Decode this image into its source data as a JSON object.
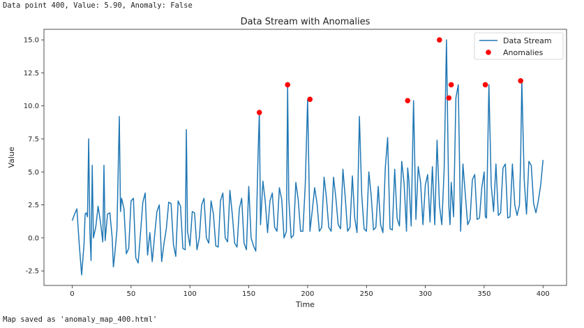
{
  "output": {
    "status_line": "Data point 400, Value: 5.90, Anomaly: False",
    "saved_line": "Map saved as 'anomaly_map_400.html'"
  },
  "colors": {
    "stream": "#1f77b4",
    "anomaly": "#ff0000"
  },
  "chart_data": {
    "type": "line",
    "title": "Data Stream with Anomalies",
    "xlabel": "Time",
    "ylabel": "Value",
    "xlim": [
      -24,
      420
    ],
    "ylim": [
      -3.6,
      15.8
    ],
    "xticks": [
      0,
      50,
      100,
      150,
      200,
      250,
      300,
      350,
      400
    ],
    "yticks": [
      -2.5,
      0.0,
      2.5,
      5.0,
      7.5,
      10.0,
      12.5,
      15.0
    ],
    "ytick_labels": [
      "-2.5",
      "0.0",
      "2.5",
      "5.0",
      "7.5",
      "10.0",
      "12.5",
      "15.0"
    ],
    "legend": {
      "position": "top-right",
      "entries": [
        "Data Stream",
        "Anomalies"
      ]
    },
    "series": [
      {
        "name": "Data Stream",
        "style": "line",
        "x": [
          0,
          2,
          4,
          6,
          8,
          10,
          11,
          12,
          13,
          14,
          15,
          16,
          17,
          18,
          20,
          22,
          24,
          26,
          27,
          28,
          30,
          32,
          34,
          35,
          36,
          38,
          40,
          41,
          42,
          44,
          46,
          48,
          50,
          52,
          54,
          56,
          58,
          60,
          62,
          64,
          66,
          68,
          70,
          72,
          74,
          76,
          78,
          80,
          82,
          84,
          86,
          88,
          90,
          92,
          94,
          96,
          97,
          98,
          100,
          102,
          104,
          106,
          108,
          110,
          112,
          114,
          116,
          118,
          120,
          122,
          124,
          126,
          128,
          130,
          132,
          134,
          136,
          138,
          140,
          142,
          144,
          146,
          148,
          150,
          152,
          154,
          156,
          158,
          159,
          160,
          162,
          164,
          166,
          168,
          170,
          172,
          174,
          176,
          178,
          180,
          182,
          183,
          184,
          186,
          188,
          190,
          192,
          194,
          196,
          198,
          200,
          202,
          204,
          206,
          208,
          210,
          212,
          214,
          216,
          218,
          220,
          222,
          224,
          226,
          228,
          230,
          232,
          234,
          236,
          238,
          240,
          242,
          244,
          246,
          248,
          250,
          252,
          254,
          256,
          258,
          260,
          262,
          264,
          266,
          268,
          270,
          272,
          274,
          276,
          278,
          280,
          282,
          284,
          285,
          286,
          288,
          290,
          292,
          294,
          296,
          298,
          300,
          302,
          304,
          306,
          308,
          310,
          312,
          314,
          316,
          318,
          320,
          321,
          322,
          324,
          326,
          328,
          330,
          332,
          334,
          336,
          338,
          340,
          342,
          344,
          346,
          348,
          350,
          351,
          352,
          354,
          356,
          358,
          360,
          362,
          364,
          366,
          368,
          370,
          372,
          374,
          376,
          378,
          380,
          381,
          382,
          384,
          386,
          388,
          390,
          392,
          394,
          396,
          398,
          400
        ],
        "y": [
          1.3,
          1.8,
          2.2,
          -0.5,
          -2.8,
          -0.5,
          1.8,
          1.9,
          1.6,
          7.5,
          0.5,
          -1.7,
          5.5,
          0.0,
          0.8,
          2.4,
          1.2,
          -0.3,
          5.5,
          -0.2,
          1.8,
          1.9,
          0.0,
          -2.2,
          -1.4,
          0.6,
          9.2,
          2.0,
          3.0,
          2.2,
          -1.2,
          -0.8,
          2.8,
          3.0,
          -1.5,
          -1.9,
          0.3,
          2.7,
          3.4,
          -1.3,
          0.4,
          -1.8,
          0.2,
          2.0,
          2.5,
          -1.8,
          -0.4,
          0.7,
          2.7,
          2.6,
          -0.5,
          -1.4,
          2.8,
          2.4,
          -0.8,
          -0.9,
          8.2,
          0.5,
          -0.6,
          2.0,
          1.9,
          -0.9,
          0.0,
          2.5,
          3.0,
          0.0,
          -0.4,
          2.8,
          1.8,
          -0.6,
          -0.7,
          2.8,
          3.4,
          0.0,
          -0.3,
          3.6,
          1.8,
          -0.4,
          -0.7,
          2.2,
          3.0,
          -0.4,
          -0.9,
          3.9,
          0.0,
          -0.6,
          -1.0,
          6.6,
          9.5,
          1.0,
          4.3,
          2.8,
          0.4,
          2.8,
          3.4,
          0.8,
          0.5,
          3.8,
          2.9,
          0.0,
          0.5,
          11.6,
          3.0,
          0.0,
          0.2,
          4.2,
          2.9,
          0.5,
          0.5,
          4.0,
          10.5,
          0.5,
          2.1,
          3.8,
          2.6,
          0.5,
          0.8,
          4.6,
          3.0,
          0.8,
          0.5,
          4.6,
          3.0,
          1.0,
          0.7,
          5.2,
          3.0,
          0.5,
          0.8,
          4.7,
          1.5,
          0.4,
          9.2,
          3.2,
          0.7,
          0.5,
          5.0,
          3.2,
          0.6,
          0.8,
          3.9,
          1.0,
          0.4,
          5.3,
          7.6,
          0.7,
          0.6,
          5.2,
          1.5,
          0.9,
          5.8,
          4.1,
          0.5,
          5.3,
          4.4,
          0.9,
          10.4,
          1.4,
          5.4,
          4.2,
          1.0,
          4.0,
          4.8,
          1.2,
          5.4,
          1.0,
          7.4,
          2.5,
          1.0,
          5.2,
          15.0,
          2.4,
          1.0,
          4.2,
          1.6,
          10.6,
          11.6,
          0.5,
          5.6,
          3.3,
          1.0,
          1.4,
          4.4,
          4.8,
          1.4,
          1.5,
          3.8,
          5.0,
          1.6,
          1.5,
          11.6,
          4.0,
          2.0,
          5.6,
          1.7,
          1.9,
          5.3,
          5.6,
          1.5,
          1.6,
          5.6,
          2.5,
          1.7,
          2.5,
          6.0,
          11.9,
          4.4,
          1.8,
          5.8,
          5.5,
          2.6,
          1.9,
          2.8,
          4.0,
          5.9
        ]
      },
      {
        "name": "Anomalies",
        "style": "scatter",
        "x": [
          159,
          183,
          202,
          285,
          312,
          320,
          322,
          351,
          381
        ],
        "y": [
          9.5,
          11.6,
          10.5,
          10.4,
          15.0,
          10.6,
          11.6,
          11.6,
          11.9
        ]
      }
    ]
  }
}
